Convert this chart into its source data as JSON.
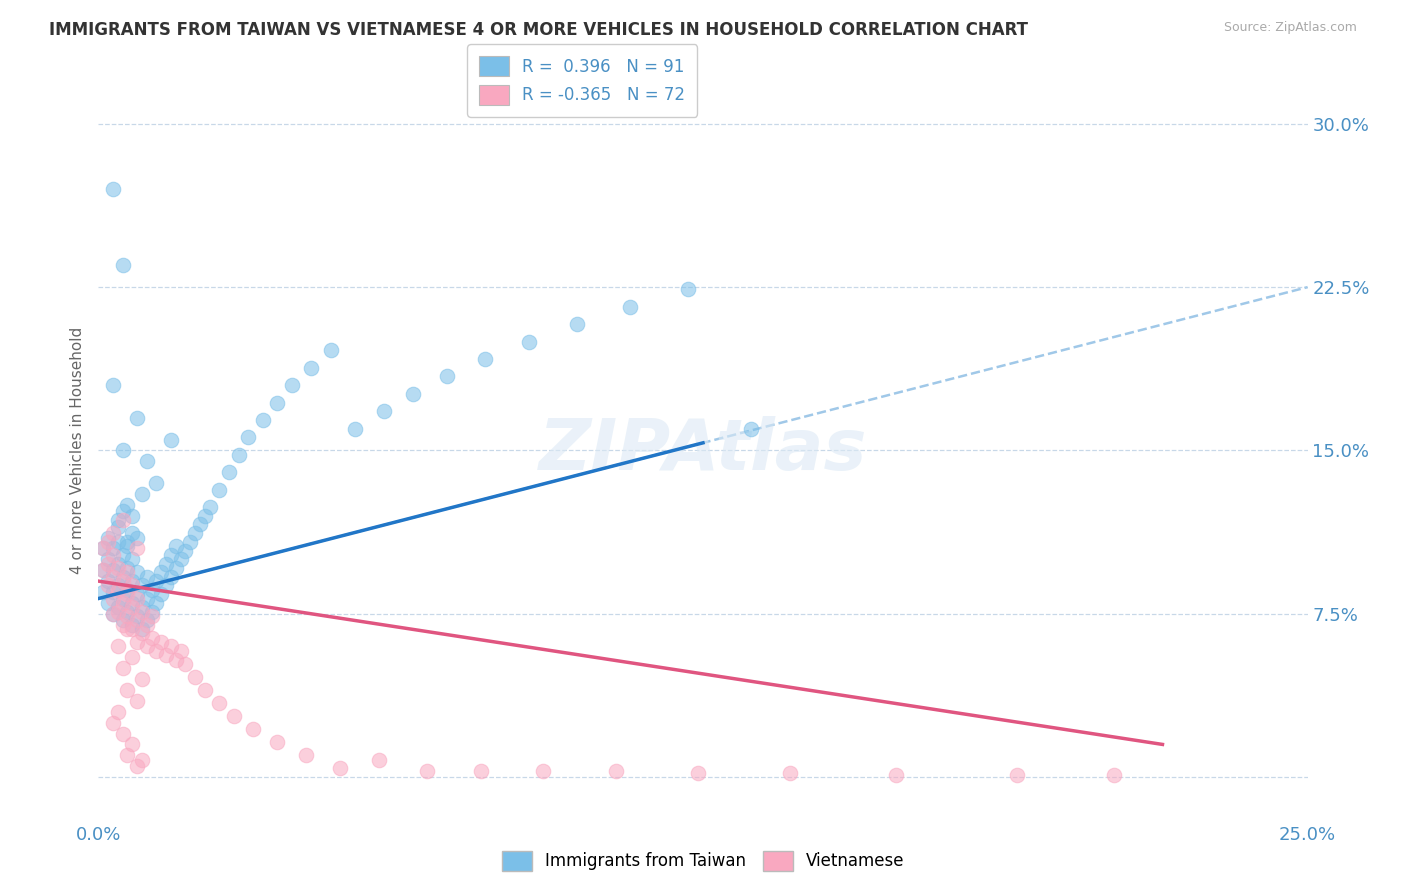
{
  "title": "IMMIGRANTS FROM TAIWAN VS VIETNAMESE 4 OR MORE VEHICLES IN HOUSEHOLD CORRELATION CHART",
  "source": "Source: ZipAtlas.com",
  "ylabel": "4 or more Vehicles in Household",
  "xlim": [
    0.0,
    0.25
  ],
  "ylim": [
    -0.02,
    0.32
  ],
  "taiwan_R": 0.396,
  "taiwan_N": 91,
  "viet_R": -0.365,
  "viet_N": 72,
  "taiwan_color": "#7bbfe8",
  "viet_color": "#f9a8c0",
  "taiwan_line_color": "#2176c7",
  "viet_line_color": "#e05580",
  "dashed_line_color": "#a0c8e8",
  "background_color": "#ffffff",
  "grid_color": "#c8d8e8",
  "label_color": "#4a90c4",
  "y_ticks": [
    0.0,
    0.075,
    0.15,
    0.225,
    0.3
  ],
  "y_tick_labels": [
    "",
    "7.5%",
    "15.0%",
    "22.5%",
    "30.0%"
  ],
  "watermark": "ZIPAtlas",
  "taiwan_x": [
    0.001,
    0.001,
    0.001,
    0.002,
    0.002,
    0.002,
    0.002,
    0.003,
    0.003,
    0.003,
    0.003,
    0.004,
    0.004,
    0.004,
    0.004,
    0.005,
    0.005,
    0.005,
    0.005,
    0.006,
    0.006,
    0.006,
    0.006,
    0.007,
    0.007,
    0.007,
    0.007,
    0.008,
    0.008,
    0.008,
    0.009,
    0.009,
    0.009,
    0.01,
    0.01,
    0.01,
    0.011,
    0.011,
    0.012,
    0.012,
    0.013,
    0.013,
    0.014,
    0.014,
    0.015,
    0.015,
    0.016,
    0.016,
    0.017,
    0.018,
    0.019,
    0.02,
    0.021,
    0.022,
    0.023,
    0.025,
    0.027,
    0.029,
    0.031,
    0.034,
    0.037,
    0.04,
    0.044,
    0.048,
    0.053,
    0.059,
    0.065,
    0.072,
    0.08,
    0.089,
    0.099,
    0.11,
    0.122,
    0.135,
    0.003,
    0.005,
    0.008,
    0.003,
    0.005,
    0.01,
    0.015,
    0.007,
    0.004,
    0.006,
    0.009,
    0.012,
    0.008,
    0.006,
    0.007,
    0.004,
    0.005
  ],
  "taiwan_y": [
    0.085,
    0.095,
    0.105,
    0.08,
    0.09,
    0.1,
    0.11,
    0.075,
    0.085,
    0.095,
    0.105,
    0.078,
    0.088,
    0.098,
    0.108,
    0.072,
    0.082,
    0.092,
    0.102,
    0.076,
    0.086,
    0.096,
    0.106,
    0.07,
    0.08,
    0.09,
    0.1,
    0.074,
    0.084,
    0.094,
    0.068,
    0.078,
    0.088,
    0.072,
    0.082,
    0.092,
    0.076,
    0.086,
    0.08,
    0.09,
    0.084,
    0.094,
    0.088,
    0.098,
    0.092,
    0.102,
    0.096,
    0.106,
    0.1,
    0.104,
    0.108,
    0.112,
    0.116,
    0.12,
    0.124,
    0.132,
    0.14,
    0.148,
    0.156,
    0.164,
    0.172,
    0.18,
    0.188,
    0.196,
    0.16,
    0.168,
    0.176,
    0.184,
    0.192,
    0.2,
    0.208,
    0.216,
    0.224,
    0.16,
    0.27,
    0.235,
    0.165,
    0.18,
    0.15,
    0.145,
    0.155,
    0.12,
    0.115,
    0.125,
    0.13,
    0.135,
    0.11,
    0.108,
    0.112,
    0.118,
    0.122
  ],
  "viet_x": [
    0.001,
    0.001,
    0.002,
    0.002,
    0.002,
    0.003,
    0.003,
    0.003,
    0.004,
    0.004,
    0.004,
    0.005,
    0.005,
    0.005,
    0.006,
    0.006,
    0.006,
    0.007,
    0.007,
    0.007,
    0.008,
    0.008,
    0.008,
    0.009,
    0.009,
    0.01,
    0.01,
    0.011,
    0.011,
    0.012,
    0.013,
    0.014,
    0.015,
    0.016,
    0.017,
    0.018,
    0.02,
    0.022,
    0.025,
    0.028,
    0.032,
    0.037,
    0.043,
    0.05,
    0.058,
    0.068,
    0.079,
    0.092,
    0.107,
    0.124,
    0.143,
    0.165,
    0.19,
    0.21,
    0.003,
    0.005,
    0.008,
    0.003,
    0.006,
    0.004,
    0.007,
    0.005,
    0.009,
    0.006,
    0.008,
    0.004,
    0.003,
    0.005,
    0.007,
    0.006,
    0.009,
    0.008
  ],
  "viet_y": [
    0.095,
    0.105,
    0.088,
    0.098,
    0.108,
    0.082,
    0.092,
    0.102,
    0.076,
    0.086,
    0.096,
    0.07,
    0.08,
    0.09,
    0.074,
    0.084,
    0.094,
    0.068,
    0.078,
    0.088,
    0.062,
    0.072,
    0.082,
    0.066,
    0.076,
    0.06,
    0.07,
    0.064,
    0.074,
    0.058,
    0.062,
    0.056,
    0.06,
    0.054,
    0.058,
    0.052,
    0.046,
    0.04,
    0.034,
    0.028,
    0.022,
    0.016,
    0.01,
    0.004,
    0.008,
    0.003,
    0.003,
    0.003,
    0.003,
    0.002,
    0.002,
    0.001,
    0.001,
    0.001,
    0.112,
    0.118,
    0.105,
    0.075,
    0.068,
    0.06,
    0.055,
    0.05,
    0.045,
    0.04,
    0.035,
    0.03,
    0.025,
    0.02,
    0.015,
    0.01,
    0.008,
    0.005
  ]
}
